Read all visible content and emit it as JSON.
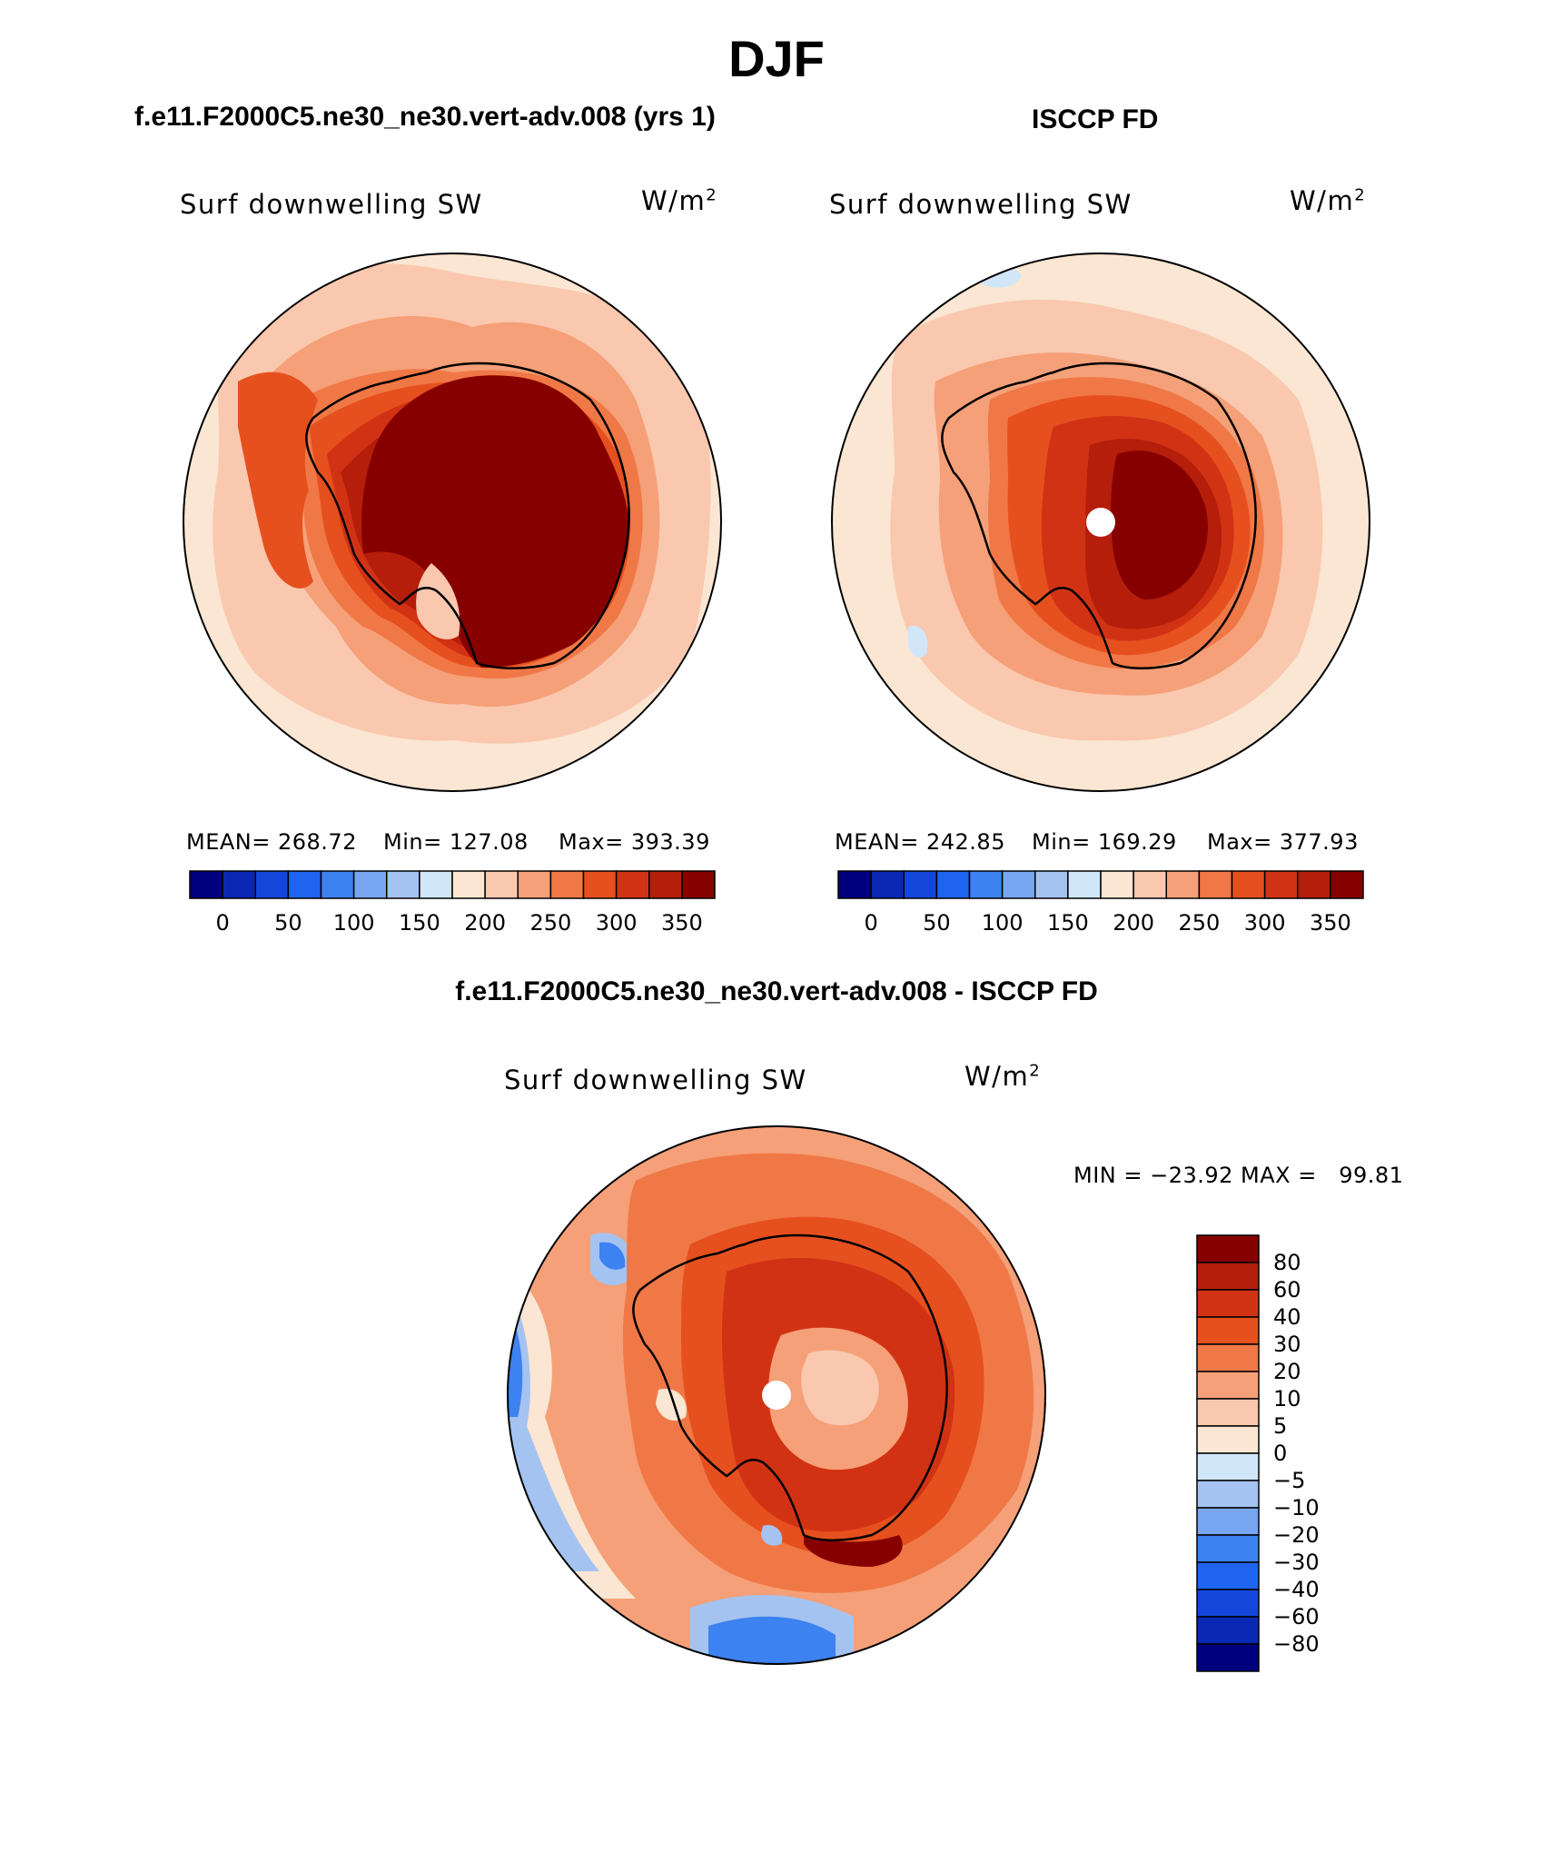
{
  "title": "DJF",
  "panels": [
    {
      "case_title": "f.e11.F2000C5.ne30_ne30.vert-adv.008 (yrs 1)",
      "variable": "Surf downwelling SW",
      "units": "W/m",
      "units_sup": "2",
      "stats": {
        "mean": "MEAN= 268.72",
        "min": "Min= 127.08",
        "max": "Max= 393.39"
      }
    },
    {
      "case_title": "ISCCP FD",
      "variable": "Surf downwelling SW",
      "units": "W/m",
      "units_sup": "2",
      "stats": {
        "mean": "MEAN= 242.85",
        "min": "Min= 169.29",
        "max": "Max= 377.93"
      }
    },
    {
      "case_title": "f.e11.F2000C5.ne30_ne30.vert-adv.008 - ISCCP FD",
      "variable": "Surf downwelling SW",
      "units": "W/m",
      "units_sup": "2",
      "stats": {
        "minmax": "MIN = −23.92 MAX =   99.81"
      }
    }
  ],
  "colorbar_abs": {
    "colors": [
      "#00007f",
      "#0a28b3",
      "#1446dc",
      "#1e64f0",
      "#3c82f0",
      "#78a5f0",
      "#a5c3f0",
      "#d2e6fa",
      "#fae6d2",
      "#fac8af",
      "#f5a078",
      "#f07846",
      "#e6501e",
      "#d23214",
      "#b41e0a",
      "#870000"
    ],
    "labels": [
      "0",
      "50",
      "100",
      "150",
      "200",
      "250",
      "300",
      "350"
    ]
  },
  "colorbar_diff": {
    "colors": [
      "#870000",
      "#b41e0a",
      "#d23214",
      "#e6501e",
      "#f07846",
      "#f5a078",
      "#fac8af",
      "#fae6d2",
      "#d2e6fa",
      "#a5c3f0",
      "#78a5f0",
      "#3c82f0",
      "#1e64f0",
      "#1446dc",
      "#0a28b3",
      "#00007f"
    ],
    "labels": [
      "80",
      "60",
      "40",
      "30",
      "20",
      "10",
      "5",
      "0",
      "−5",
      "−10",
      "−20",
      "−30",
      "−40",
      "−60",
      "−80"
    ]
  },
  "colors": {
    "outline": "#000000",
    "missing": "#ffffff"
  }
}
